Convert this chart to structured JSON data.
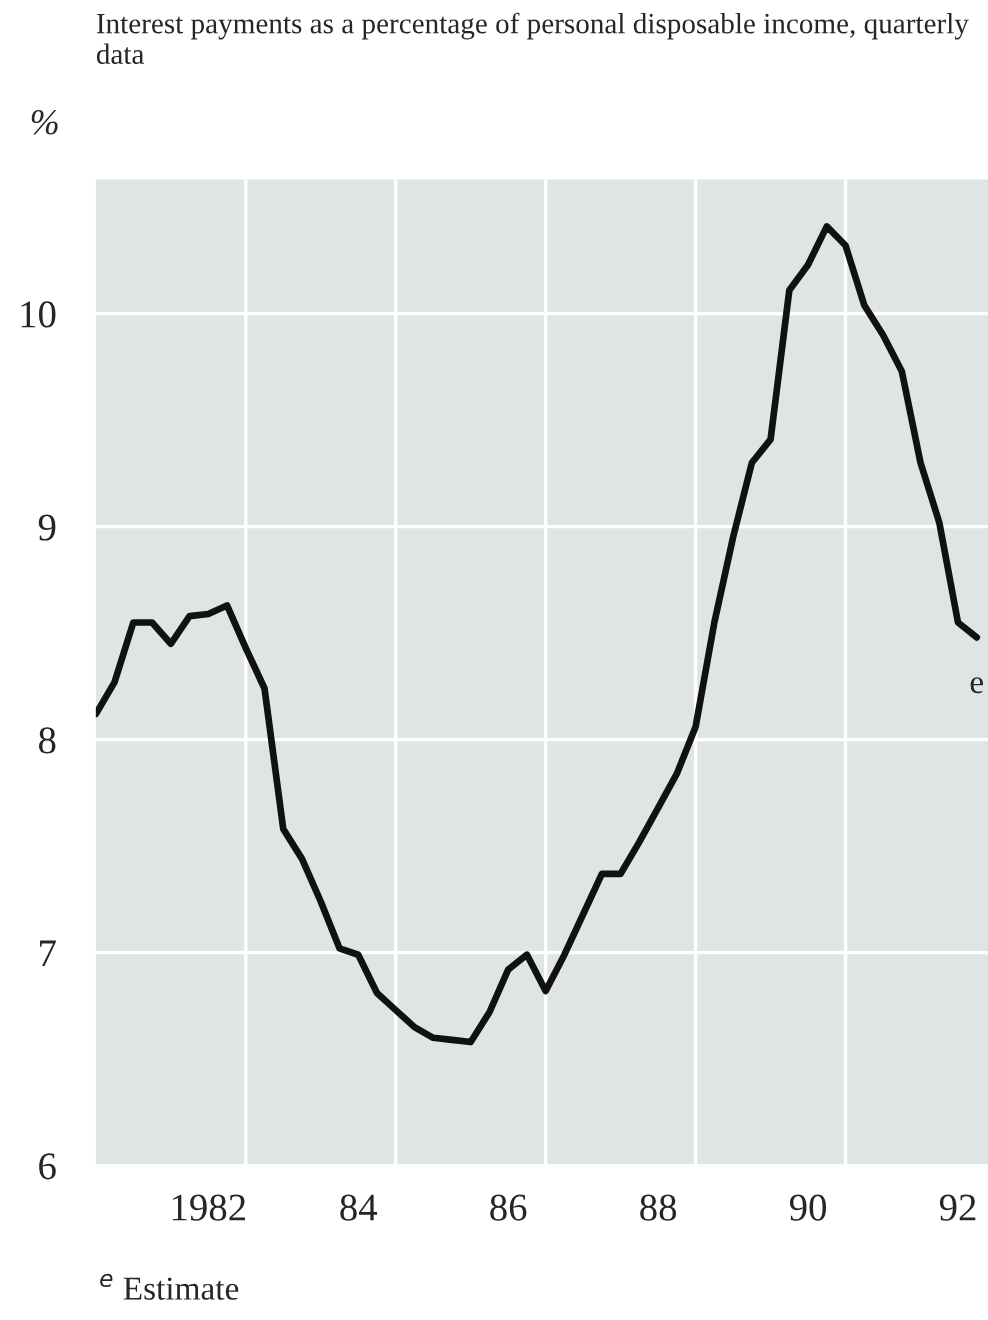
{
  "chart_data": {
    "type": "line",
    "title": "Interest payments as a percentage of personal disposable income, quarterly data",
    "ylabel": "%",
    "x": [
      1980.5,
      1980.75,
      1981.0,
      1981.25,
      1981.5,
      1981.75,
      1982.0,
      1982.25,
      1982.5,
      1982.75,
      1983.0,
      1983.25,
      1983.5,
      1983.75,
      1984.0,
      1984.25,
      1984.5,
      1984.75,
      1985.0,
      1985.25,
      1985.5,
      1985.75,
      1986.0,
      1986.25,
      1986.5,
      1986.75,
      1987.0,
      1987.25,
      1987.5,
      1987.75,
      1988.0,
      1988.25,
      1988.5,
      1988.75,
      1989.0,
      1989.25,
      1989.5,
      1989.75,
      1990.0,
      1990.25,
      1990.5,
      1990.75,
      1991.0,
      1991.25,
      1991.5,
      1991.75,
      1992.0,
      1992.25
    ],
    "series": [
      {
        "color": "#111111",
        "values": [
          8.12,
          8.27,
          8.55,
          8.55,
          8.45,
          8.58,
          8.59,
          8.63,
          8.43,
          8.24,
          7.58,
          7.44,
          7.24,
          7.02,
          6.99,
          6.81,
          6.73,
          6.65,
          6.6,
          6.59,
          6.58,
          6.72,
          6.92,
          6.99,
          6.82,
          6.99,
          7.18,
          7.37,
          7.37,
          7.52,
          7.68,
          7.84,
          8.06,
          8.55,
          8.95,
          9.3,
          9.41,
          10.11,
          10.23,
          10.41,
          10.32,
          10.04,
          9.9,
          9.73,
          9.3,
          9.02,
          8.55,
          8.48
        ]
      }
    ],
    "xlim": [
      1980.5,
      1992.4
    ],
    "xticks": [
      {
        "value": 1982,
        "label": "1982"
      },
      {
        "value": 1982.5,
        "label": null
      },
      {
        "value": 1984,
        "label": "84"
      },
      {
        "value": 1984.5,
        "label": null
      },
      {
        "value": 1986,
        "label": "86"
      },
      {
        "value": 1986.5,
        "label": null
      },
      {
        "value": 1988,
        "label": "88"
      },
      {
        "value": 1988.5,
        "label": null
      },
      {
        "value": 1990,
        "label": "90"
      },
      {
        "value": 1990.5,
        "label": null
      },
      {
        "value": 1992,
        "label": "92"
      }
    ],
    "ylim": [
      6,
      10.63
    ],
    "yticks": [
      6,
      7,
      8,
      9,
      10
    ],
    "grid": true,
    "annotations": [
      {
        "text": "e",
        "x": 1992.25,
        "y": 8.48
      },
      "$^{e}$ Estimate"
    ]
  }
}
